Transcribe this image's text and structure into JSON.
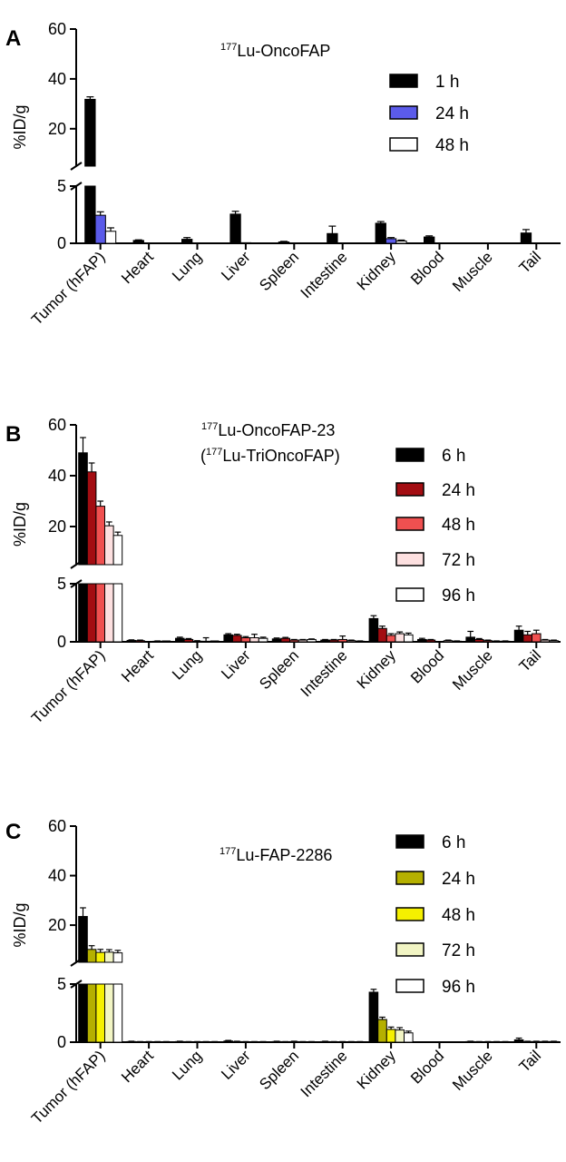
{
  "chart_data": [
    {
      "type": "bar",
      "panel": "A",
      "title": {
        "sup": "177",
        "text": "Lu-OncoFAP"
      },
      "subtitle": null,
      "ylabel": "%ID/g",
      "xlabel": "",
      "broken_axis": {
        "lower": [
          0,
          5
        ],
        "upper": [
          5,
          60
        ]
      },
      "lower_ticks": [
        "0",
        "5"
      ],
      "upper_ticks": [
        "20",
        "40",
        "60"
      ],
      "categories": [
        "Tumor (hFAP)",
        "Heart",
        "Lung",
        "Liver",
        "Spleen",
        "Intestine",
        "Kidney",
        "Blood",
        "Muscle",
        "Tail"
      ],
      "series": [
        {
          "name": "1 h",
          "color": "#000000",
          "values": [
            31.8,
            0.25,
            0.35,
            2.55,
            0.12,
            0.85,
            1.75,
            0.55,
            0.0,
            0.9
          ],
          "errors": [
            1.0,
            0.05,
            0.15,
            0.25,
            0.05,
            0.65,
            0.15,
            0.1,
            0.0,
            0.3
          ]
        },
        {
          "name": "24 h",
          "color": "#5b5bea",
          "values": [
            2.45,
            0.0,
            0.0,
            0.05,
            0.0,
            0.0,
            0.4,
            0.0,
            0.0,
            0.0
          ],
          "errors": [
            0.3,
            0.0,
            0.0,
            0.0,
            0.0,
            0.0,
            0.1,
            0.0,
            0.0,
            0.0
          ]
        },
        {
          "name": "48 h",
          "color": "#ffffff",
          "values": [
            1.05,
            0.0,
            0.0,
            0.0,
            0.0,
            0.0,
            0.2,
            0.0,
            0.0,
            0.0
          ],
          "errors": [
            0.3,
            0.0,
            0.0,
            0.0,
            0.0,
            0.0,
            0.08,
            0.0,
            0.0,
            0.0
          ]
        }
      ],
      "legend_position": "right"
    },
    {
      "type": "bar",
      "panel": "B",
      "title": {
        "sup": "177",
        "text": "Lu-OncoFAP-23"
      },
      "subtitle": {
        "open": "(",
        "sup": "177",
        "text": "Lu-TriOncoFAP)"
      },
      "ylabel": "%ID/g",
      "xlabel": "",
      "broken_axis": {
        "lower": [
          0,
          5
        ],
        "upper": [
          5,
          60
        ]
      },
      "lower_ticks": [
        "0",
        "5"
      ],
      "upper_ticks": [
        "20",
        "40",
        "60"
      ],
      "categories": [
        "Tumor (hFAP)",
        "Heart",
        "Lung",
        "Liver",
        "Spleen",
        "Intestine",
        "Kidney",
        "Blood",
        "Muscle",
        "Tail"
      ],
      "series": [
        {
          "name": "6 h",
          "color": "#000000",
          "values": [
            49,
            0.12,
            0.3,
            0.6,
            0.25,
            0.15,
            2.0,
            0.2,
            0.4,
            1.0
          ],
          "errors": [
            6.0,
            0.05,
            0.1,
            0.1,
            0.08,
            0.05,
            0.25,
            0.1,
            0.5,
            0.35
          ]
        },
        {
          "name": "24 h",
          "color": "#a30d12",
          "values": [
            41.5,
            0.1,
            0.2,
            0.55,
            0.3,
            0.15,
            1.15,
            0.15,
            0.2,
            0.6
          ],
          "errors": [
            3.5,
            0.05,
            0.08,
            0.1,
            0.08,
            0.05,
            0.2,
            0.05,
            0.08,
            0.3
          ]
        },
        {
          "name": "48 h",
          "color": "#f05050",
          "values": [
            28,
            0.0,
            0.05,
            0.35,
            0.15,
            0.2,
            0.55,
            0.0,
            0.1,
            0.7
          ],
          "errors": [
            2.0,
            0.0,
            0.05,
            0.1,
            0.05,
            0.3,
            0.15,
            0.0,
            0.05,
            0.3
          ]
        },
        {
          "name": "72 h",
          "color": "#fde0e0",
          "values": [
            20.3,
            0.05,
            0.05,
            0.35,
            0.15,
            0.1,
            0.7,
            0.1,
            0.05,
            0.15
          ],
          "errors": [
            1.5,
            0.03,
            0.3,
            0.3,
            0.05,
            0.05,
            0.15,
            0.05,
            0.03,
            0.05
          ]
        },
        {
          "name": "96 h",
          "color": "#ffffff",
          "values": [
            16.5,
            0.02,
            0.02,
            0.3,
            0.2,
            0.05,
            0.6,
            0.05,
            0.05,
            0.1
          ],
          "errors": [
            1.3,
            0.02,
            0.02,
            0.1,
            0.05,
            0.03,
            0.15,
            0.03,
            0.03,
            0.05
          ]
        }
      ],
      "legend_position": "right"
    },
    {
      "type": "bar",
      "panel": "C",
      "title": {
        "sup": "177",
        "text": "Lu-FAP-2286"
      },
      "subtitle": null,
      "ylabel": "%ID/g",
      "xlabel": "",
      "broken_axis": {
        "lower": [
          0,
          5
        ],
        "upper": [
          5,
          60
        ]
      },
      "lower_ticks": [
        "0",
        "5"
      ],
      "upper_ticks": [
        "20",
        "40",
        "60"
      ],
      "categories": [
        "Tumor (hFAP)",
        "Heart",
        "Lung",
        "Liver",
        "Spleen",
        "Intestine",
        "Kidney",
        "Blood",
        "Muscle",
        "Tail"
      ],
      "series": [
        {
          "name": "6 h",
          "color": "#000000",
          "values": [
            23.5,
            0.05,
            0.05,
            0.1,
            0.05,
            0.05,
            4.3,
            0.0,
            0.05,
            0.2
          ],
          "errors": [
            3.5,
            0.03,
            0.03,
            0.05,
            0.03,
            0.03,
            0.25,
            0.0,
            0.03,
            0.15
          ]
        },
        {
          "name": "24 h",
          "color": "#b5b000",
          "values": [
            10.2,
            0.03,
            0.03,
            0.05,
            0.03,
            0.03,
            1.95,
            0.0,
            0.03,
            0.05
          ],
          "errors": [
            1.5,
            0.02,
            0.02,
            0.03,
            0.02,
            0.02,
            0.2,
            0.0,
            0.02,
            0.03
          ]
        },
        {
          "name": "48 h",
          "color": "#f5f000",
          "values": [
            9.0,
            0.03,
            0.03,
            0.03,
            0.05,
            0.03,
            1.1,
            0.0,
            0.03,
            0.05
          ],
          "errors": [
            1.2,
            0.02,
            0.02,
            0.02,
            0.03,
            0.02,
            0.2,
            0.0,
            0.02,
            0.03
          ]
        },
        {
          "name": "72 h",
          "color": "#f2f5c4",
          "values": [
            9.1,
            0.03,
            0.03,
            0.03,
            0.03,
            0.03,
            1.05,
            0.0,
            0.03,
            0.05
          ],
          "errors": [
            1.0,
            0.02,
            0.02,
            0.02,
            0.02,
            0.02,
            0.2,
            0.0,
            0.02,
            0.03
          ]
        },
        {
          "name": "96 h",
          "color": "#ffffff",
          "values": [
            8.8,
            0.03,
            0.03,
            0.03,
            0.03,
            0.03,
            0.8,
            0.0,
            0.03,
            0.05
          ],
          "errors": [
            1.0,
            0.02,
            0.02,
            0.02,
            0.02,
            0.02,
            0.15,
            0.0,
            0.02,
            0.03
          ]
        }
      ],
      "legend_position": "right"
    }
  ]
}
